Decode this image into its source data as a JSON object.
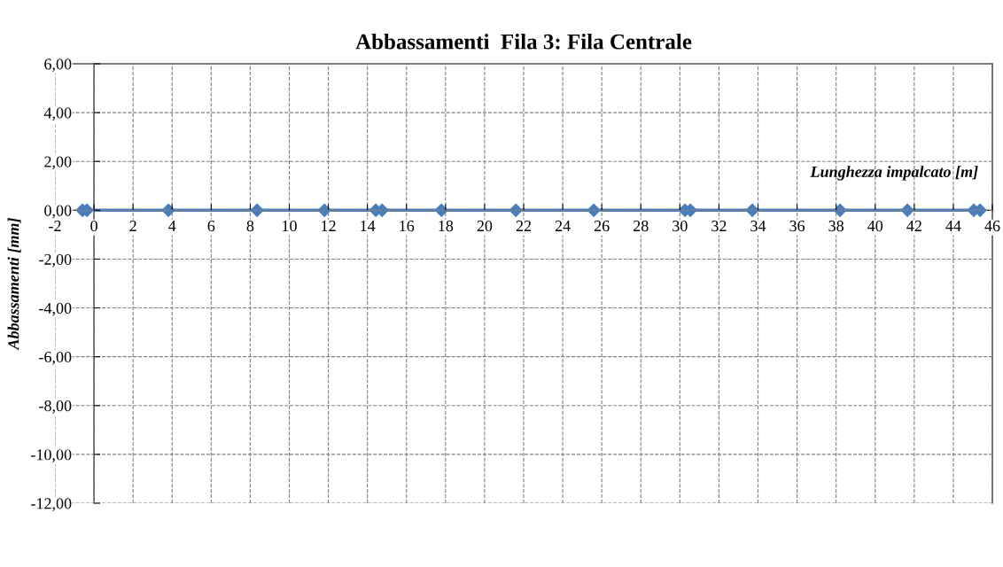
{
  "chart_data": {
    "type": "line",
    "title": "Abbassamenti  Fila 3: Fila Centrale",
    "xlabel": "Lunghezza impalcato [m]",
    "ylabel": "Abbassamenti [mm]",
    "x": [
      -0.59,
      -0.36,
      3.81,
      8.35,
      11.8,
      14.43,
      14.75,
      17.79,
      21.6,
      25.59,
      30.26,
      30.54,
      33.71,
      38.2,
      41.65,
      45.05,
      45.37
    ],
    "series": [
      {
        "color": "#4a7ebb",
        "values": [
          0,
          0,
          0,
          0,
          0,
          0,
          0,
          0,
          0,
          0,
          0,
          0,
          0,
          0,
          0,
          0,
          0
        ]
      }
    ],
    "marker": "diamond",
    "line_style": "solid",
    "grid": true,
    "xlim": [
      -2,
      46
    ],
    "xticks": [
      -2,
      0,
      2,
      4,
      6,
      8,
      10,
      12,
      14,
      16,
      18,
      20,
      22,
      24,
      26,
      28,
      30,
      32,
      34,
      36,
      38,
      40,
      42,
      44,
      46
    ],
    "ylim": [
      -12,
      6
    ],
    "yticks": [
      {
        "value": 6,
        "label": "6,00"
      },
      {
        "value": 4,
        "label": "4,00"
      },
      {
        "value": 2,
        "label": "2,00"
      },
      {
        "value": 0,
        "label": "0,00"
      },
      {
        "value": -2,
        "label": "-2,00"
      },
      {
        "value": -4,
        "label": "-4,00"
      },
      {
        "value": -6,
        "label": "-6,00"
      },
      {
        "value": -8,
        "label": "-8,00"
      },
      {
        "value": -10,
        "label": "-10,00"
      },
      {
        "value": -12,
        "label": "-12,00"
      }
    ]
  }
}
